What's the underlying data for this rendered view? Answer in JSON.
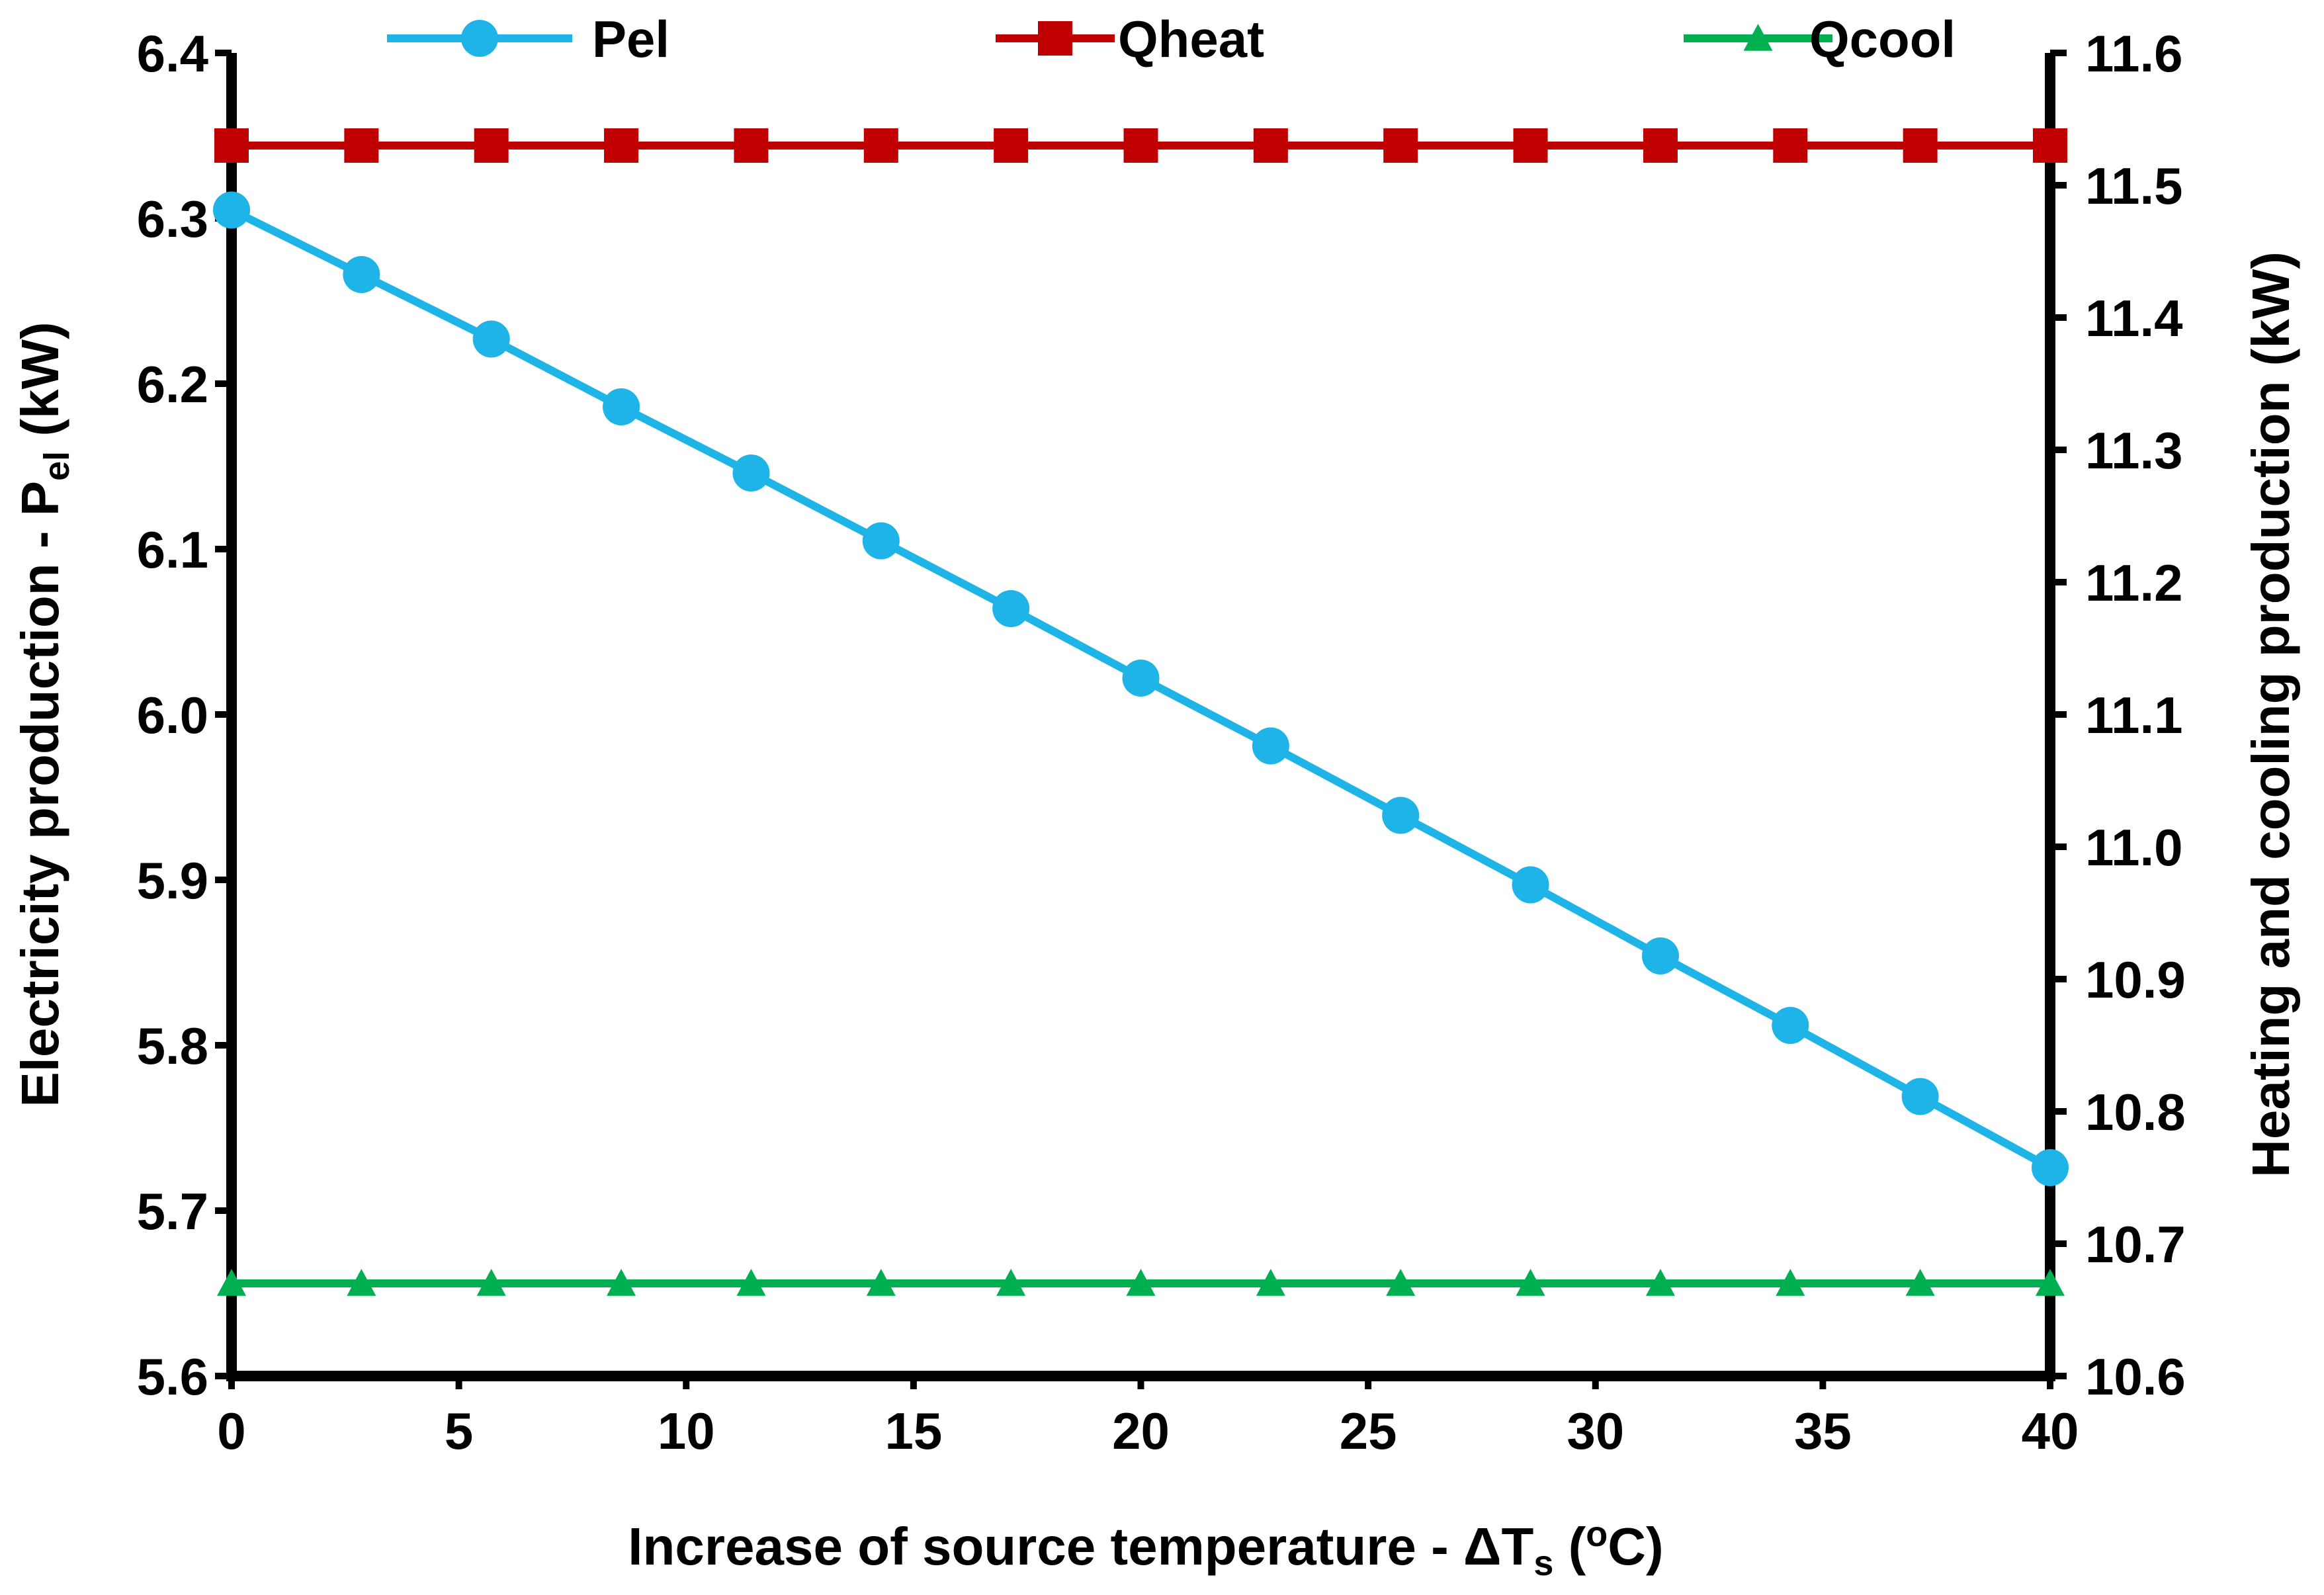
{
  "chart_data": {
    "type": "line",
    "xlabel_main": "Increase of source temperature - ΔT",
    "xlabel_sub": "s",
    "xlabel_paren_open": " (",
    "xlabel_sup": "o",
    "xlabel_unit": "C)",
    "ylabel_left_main": "Electricity production - P",
    "ylabel_left_sub": "el",
    "ylabel_left_unit": " (kW)",
    "ylabel_right": "Heating and cooling production (kW)",
    "xlim": [
      0,
      40
    ],
    "ylim_left": [
      5.6,
      6.4
    ],
    "ylim_right": [
      10.6,
      11.6
    ],
    "x_ticks": [
      "0",
      "5",
      "10",
      "15",
      "20",
      "25",
      "30",
      "35",
      "40"
    ],
    "y_left_ticks": [
      "5.6",
      "5.7",
      "5.8",
      "5.9",
      "6.0",
      "6.1",
      "6.2",
      "6.3",
      "6.4"
    ],
    "y_right_ticks": [
      "10.6",
      "10.7",
      "10.8",
      "10.9",
      "11.0",
      "11.1",
      "11.2",
      "11.3",
      "11.4",
      "11.5",
      "11.6"
    ],
    "x": [
      0,
      2.857,
      5.714,
      8.571,
      11.429,
      14.286,
      17.143,
      20.0,
      22.857,
      25.714,
      28.571,
      31.429,
      34.286,
      37.143,
      40.0
    ],
    "grid": false,
    "legend_position": "top",
    "series": [
      {
        "name": "Pel",
        "axis": "left",
        "marker": "circle",
        "color": "#1EB4E8",
        "values": [
          6.305,
          6.266,
          6.227,
          6.186,
          6.146,
          6.105,
          6.064,
          6.022,
          5.981,
          5.939,
          5.897,
          5.854,
          5.812,
          5.769,
          5.726
        ]
      },
      {
        "name": "Qheat",
        "axis": "right",
        "marker": "square",
        "color": "#C00000",
        "values": [
          11.53,
          11.53,
          11.53,
          11.53,
          11.53,
          11.53,
          11.53,
          11.53,
          11.53,
          11.53,
          11.53,
          11.53,
          11.53,
          11.53,
          11.53
        ]
      },
      {
        "name": "Qcool",
        "axis": "right",
        "marker": "triangle",
        "color": "#00B050",
        "values": [
          10.67,
          10.67,
          10.67,
          10.67,
          10.67,
          10.67,
          10.67,
          10.67,
          10.67,
          10.67,
          10.67,
          10.67,
          10.67,
          10.67,
          10.67
        ]
      }
    ]
  }
}
